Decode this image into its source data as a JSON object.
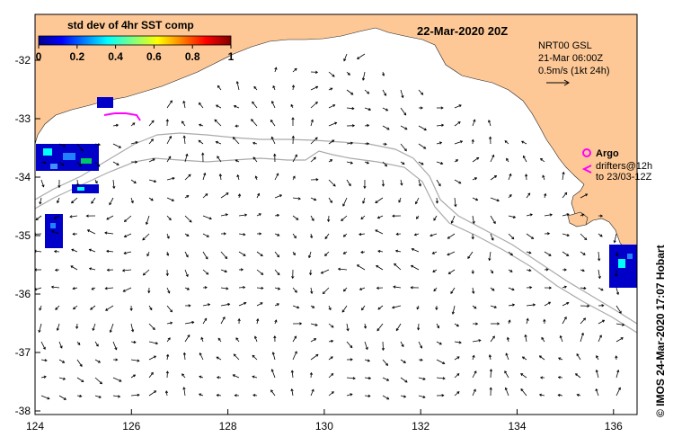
{
  "map": {
    "date_title": "22-Mar-2020 20Z",
    "colorbar": {
      "title": "std dev of 4hr SST comp",
      "ticks": [
        "0",
        "0.2",
        "0.4",
        "0.6",
        "0.8",
        "1"
      ]
    },
    "current_info": {
      "line1": "NRT00 GSL",
      "line2": "21-Mar 06:00Z",
      "line3": "0.5m/s (1kt 24h)"
    },
    "legend": {
      "argo_label": "Argo",
      "drifters_line1": "drifters@12h",
      "drifters_line2": "to 23/03-12Z"
    },
    "credit": "© IMOS 24-Mar-2020 17:07 Hobart",
    "x_ticks": [
      "124",
      "126",
      "128",
      "130",
      "132",
      "134",
      "136"
    ],
    "y_ticks": [
      "-32",
      "-33",
      "-34",
      "-35",
      "-36",
      "-37",
      "-38"
    ],
    "colors": {
      "land": "#FDC896",
      "bathymetry": "#AAAAAA",
      "drifter": "#FF00FF",
      "argo": "#FF00FF"
    }
  }
}
